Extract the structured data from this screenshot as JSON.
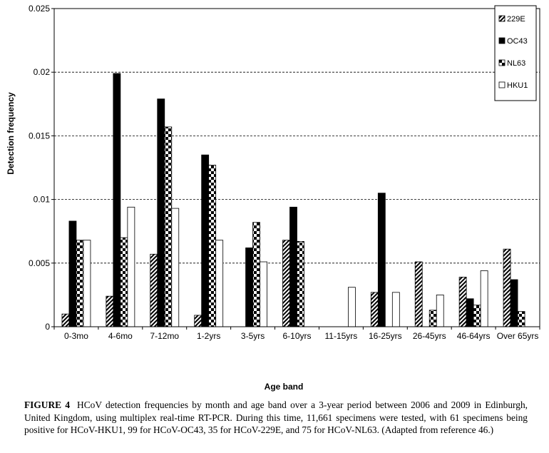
{
  "caption": {
    "label": "FIGURE 4",
    "text": "HCoV detection frequencies by month and age band over a 3-year period between 2006 and 2009 in Edinburgh, United Kingdom, using multiplex real-time RT-PCR. During this time, 11,661 specimens were tested, with 61 specimens being positive for HCoV-HKU1, 99 for HCoV-OC43, 35 for HCoV-229E, and 75 for HCoV-NL63. (Adapted from reference 46.)"
  },
  "chart_data": {
    "type": "bar",
    "xlabel": "Age band",
    "ylabel": "Detection frequency",
    "ylim": [
      0,
      0.025
    ],
    "yticks": [
      "0",
      "0.005",
      "0.01",
      "0.015",
      "0.02",
      "0.025"
    ],
    "grid": true,
    "legend_position": "top-right",
    "categories": [
      "0-3mo",
      "4-6mo",
      "7-12mo",
      "1-2yrs",
      "3-5yrs",
      "6-10yrs",
      "11-15yrs",
      "16-25yrs",
      "26-45yrs",
      "46-64yrs",
      "Over 65yrs"
    ],
    "series": [
      {
        "name": "229E",
        "pattern": "diagonal",
        "values": [
          0.001,
          0.0024,
          0.0057,
          0.0009,
          0,
          0.0068,
          0,
          0.0027,
          0.0051,
          0.0039,
          0.0061
        ]
      },
      {
        "name": "OC43",
        "pattern": "solid",
        "values": [
          0.0083,
          0.0199,
          0.0179,
          0.0135,
          0.0062,
          0.0094,
          0,
          0.0105,
          0,
          0.0022,
          0.0037
        ]
      },
      {
        "name": "NL63",
        "pattern": "checker",
        "values": [
          0.0068,
          0.007,
          0.0157,
          0.0127,
          0.0082,
          0.0067,
          0,
          0,
          0.0013,
          0.0017,
          0.0012
        ]
      },
      {
        "name": "HKU1",
        "pattern": "hollow",
        "values": [
          0.0068,
          0.0094,
          0.0093,
          0.0068,
          0.0051,
          0,
          0.0031,
          0.0027,
          0.0025,
          0.0044,
          0
        ]
      }
    ],
    "colors": {
      "fill": "#000000",
      "background": "#ffffff",
      "grid": "#000000"
    }
  }
}
